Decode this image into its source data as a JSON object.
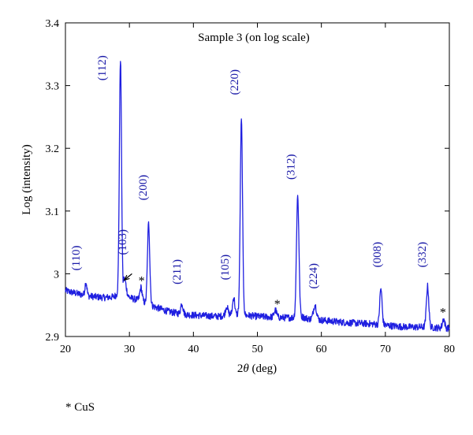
{
  "chart_data": {
    "type": "line",
    "title": "Sample 3 (on log scale)",
    "xlabel_prefix": "2",
    "xlabel_symbol": "θ",
    "xlabel_suffix": " (deg)",
    "ylabel": "Log (intensity)",
    "xlim": [
      20,
      80
    ],
    "ylim": [
      2.9,
      3.4
    ],
    "xticks": [
      20,
      30,
      40,
      50,
      60,
      70,
      80
    ],
    "yticks": [
      2.9,
      3,
      3.1,
      3.2,
      3.3,
      3.4
    ],
    "ytick_labels": [
      "2.9",
      "3",
      "3.1",
      "3.2",
      "3.3",
      "3.4"
    ],
    "grid": false,
    "line_color": "#1f1fe0",
    "label_color": "#1a1aa8",
    "baseline": [
      [
        20,
        2.973
      ],
      [
        22,
        2.968
      ],
      [
        24,
        2.964
      ],
      [
        26,
        2.962
      ],
      [
        27.5,
        2.963
      ],
      [
        28.2,
        2.968
      ],
      [
        30,
        2.962
      ],
      [
        32,
        2.956
      ],
      [
        34,
        2.947
      ],
      [
        36,
        2.94
      ],
      [
        38,
        2.936
      ],
      [
        40,
        2.934
      ],
      [
        42,
        2.933
      ],
      [
        44,
        2.932
      ],
      [
        46,
        2.936
      ],
      [
        48,
        2.934
      ],
      [
        50,
        2.932
      ],
      [
        52,
        2.931
      ],
      [
        54,
        2.93
      ],
      [
        55.5,
        2.93
      ],
      [
        56.5,
        2.933
      ],
      [
        58,
        2.928
      ],
      [
        60,
        2.926
      ],
      [
        62,
        2.924
      ],
      [
        64,
        2.922
      ],
      [
        66,
        2.921
      ],
      [
        68,
        2.92
      ],
      [
        70,
        2.918
      ],
      [
        72,
        2.916
      ],
      [
        74,
        2.915
      ],
      [
        76,
        2.915
      ],
      [
        78,
        2.914
      ],
      [
        80,
        2.913
      ]
    ],
    "peaks": [
      {
        "x": 23.2,
        "y": 2.987,
        "w": 0.15
      },
      {
        "x": 28.6,
        "y": 3.343,
        "w": 0.17
      },
      {
        "x": 29.2,
        "y": 2.992,
        "w": 0.28
      },
      {
        "x": 31.8,
        "y": 2.978,
        "w": 0.18
      },
      {
        "x": 33.0,
        "y": 3.08,
        "w": 0.18
      },
      {
        "x": 38.2,
        "y": 2.953,
        "w": 0.18
      },
      {
        "x": 45.2,
        "y": 2.948,
        "w": 0.18
      },
      {
        "x": 46.3,
        "y": 2.963,
        "w": 0.16
      },
      {
        "x": 47.5,
        "y": 3.245,
        "w": 0.18
      },
      {
        "x": 52.8,
        "y": 2.942,
        "w": 0.2
      },
      {
        "x": 56.3,
        "y": 3.124,
        "w": 0.19
      },
      {
        "x": 59.0,
        "y": 2.95,
        "w": 0.25
      },
      {
        "x": 69.3,
        "y": 2.976,
        "w": 0.18
      },
      {
        "x": 76.6,
        "y": 2.98,
        "w": 0.19
      },
      {
        "x": 79.1,
        "y": 2.928,
        "w": 0.18
      }
    ],
    "annotations": [
      {
        "text": "(110)",
        "x": 22.2,
        "y": 3.005
      },
      {
        "text": "(112)",
        "x": 26.3,
        "y": 3.308
      },
      {
        "text": "(103)",
        "x": 29.5,
        "y": 3.03
      },
      {
        "text": "(200)",
        "x": 32.7,
        "y": 3.117
      },
      {
        "text": "(211)",
        "x": 38.0,
        "y": 2.983
      },
      {
        "text": "(105)",
        "x": 45.5,
        "y": 2.99
      },
      {
        "text": "(220)",
        "x": 47.0,
        "y": 3.285
      },
      {
        "text": "(312)",
        "x": 55.8,
        "y": 3.15
      },
      {
        "text": "(224)",
        "x": 59.3,
        "y": 2.976
      },
      {
        "text": "(008)",
        "x": 69.3,
        "y": 3.01
      },
      {
        "text": "(332)",
        "x": 76.3,
        "y": 3.01
      }
    ],
    "star_marks": [
      {
        "text": "*",
        "x": 31.9,
        "y": 2.982
      },
      {
        "text": "*",
        "x": 53.1,
        "y": 2.945
      },
      {
        "text": "*",
        "x": 79.0,
        "y": 2.932
      }
    ],
    "arrow": {
      "from_x": 30.4,
      "from_y": 3.0,
      "to_x": 29.2,
      "to_y": 2.99
    }
  },
  "footnote": "* CuS"
}
